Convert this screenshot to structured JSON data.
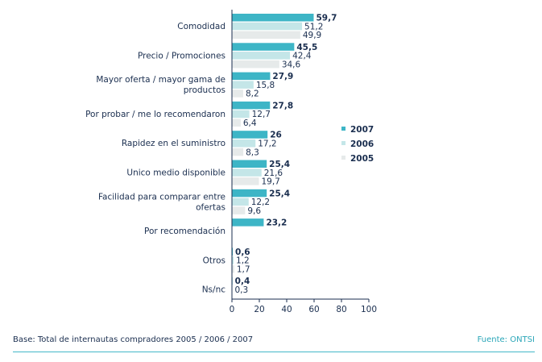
{
  "chart_data": {
    "type": "bar",
    "orientation": "horizontal",
    "categories": [
      [
        "Comodidad"
      ],
      [
        "Precio / Promociones"
      ],
      [
        "Mayor oferta / mayor gama de",
        "productos"
      ],
      [
        "Por probar / me lo recomendaron"
      ],
      [
        "Rapidez en el suministro"
      ],
      [
        "Unico medio disponible"
      ],
      [
        "Facilidad para comparar entre",
        "ofertas"
      ],
      [
        "Por recomendación"
      ],
      [
        "Otros"
      ],
      [
        "Ns/nc"
      ]
    ],
    "series": [
      {
        "name": "2007",
        "color": "#3db5c6",
        "values": [
          59.7,
          45.5,
          27.9,
          27.8,
          26,
          25.4,
          25.4,
          23.2,
          0.6,
          0.4
        ],
        "labels": [
          "59,7",
          "45,5",
          "27,9",
          "27,8",
          "26",
          "25,4",
          "25,4",
          "23,2",
          "0,6",
          "0,4"
        ]
      },
      {
        "name": "2006",
        "color": "#c4e6e8",
        "values": [
          51.2,
          42.4,
          15.8,
          12.7,
          17.2,
          21.6,
          12.2,
          null,
          1.2,
          0.3
        ],
        "labels": [
          "51,2",
          "42,4",
          "15,8",
          "12,7",
          "17,2",
          "21,6",
          "12,2",
          null,
          "1,2",
          "0,3"
        ]
      },
      {
        "name": "2005",
        "color": "#e6eaea",
        "values": [
          49.9,
          34.6,
          8.2,
          6.4,
          8.3,
          19.7,
          9.6,
          null,
          1.7,
          null
        ],
        "labels": [
          "49,9",
          "34,6",
          "8,2",
          "6,4",
          "8,3",
          "19,7",
          "9,6",
          null,
          "1,7",
          null
        ]
      }
    ],
    "xlim": [
      0,
      100
    ],
    "xticks": [
      0,
      20,
      40,
      60,
      80,
      100
    ],
    "legend_position": "right"
  },
  "footer": {
    "base": "Base: Total de internautas compradores 2005 / 2006 / 2007",
    "source": "Fuente: ONTSI"
  }
}
